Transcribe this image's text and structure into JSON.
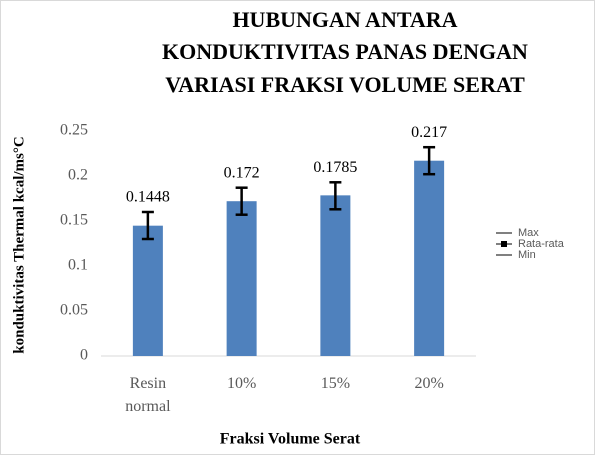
{
  "chart_data": {
    "type": "bar",
    "title": [
      "HUBUNGAN ANTARA",
      "KONDUKTIVITAS PANAS DENGAN",
      "VARIASI  FRAKSI VOLUME SERAT"
    ],
    "x_label": "Fraksi Volume Serat",
    "y_label": "konduktivitas Thermal kcal/ms°C",
    "categories": [
      "Resin normal",
      "10%",
      "15%",
      "20%"
    ],
    "series": [
      {
        "name": "Max",
        "color": "#000000",
        "values": [
          0.16,
          0.187,
          0.193,
          0.232
        ]
      },
      {
        "name": "Rata-rata",
        "color": "#4f81bd",
        "values": [
          0.1448,
          0.172,
          0.1785,
          0.217
        ]
      },
      {
        "name": "Min",
        "color": "#000000",
        "values": [
          0.13,
          0.157,
          0.163,
          0.202
        ]
      }
    ],
    "ylim": [
      0,
      0.25
    ],
    "yticks": [
      0,
      0.05,
      0.1,
      0.15,
      0.2,
      0.25
    ],
    "grid": false,
    "legend": "right"
  }
}
